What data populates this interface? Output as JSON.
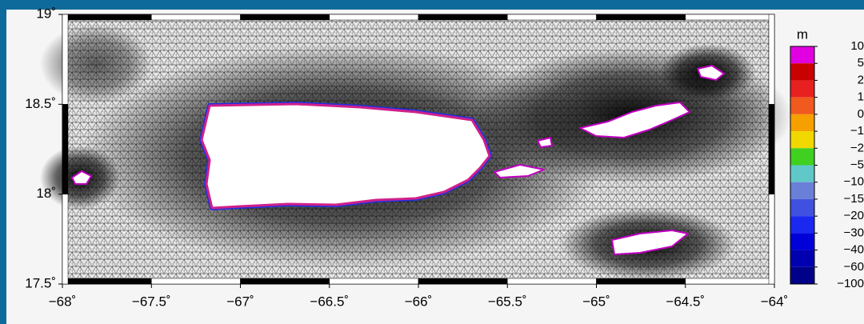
{
  "map": {
    "xlim": [
      -68,
      -64
    ],
    "ylim": [
      17.5,
      19
    ],
    "xticks": [
      {
        "value": -68,
        "label": "−68˚"
      },
      {
        "value": -67.5,
        "label": "−67.5˚"
      },
      {
        "value": -67,
        "label": "−67˚"
      },
      {
        "value": -66.5,
        "label": "−66.5˚"
      },
      {
        "value": -66,
        "label": "−66˚"
      },
      {
        "value": -65.5,
        "label": "−65.5˚"
      },
      {
        "value": -65,
        "label": "−65˚"
      },
      {
        "value": -64.5,
        "label": "−64.5˚"
      },
      {
        "value": -64,
        "label": "−64˚"
      }
    ],
    "yticks": [
      {
        "value": 17.5,
        "label": "17.5˚"
      },
      {
        "value": 18,
        "label": "18˚"
      },
      {
        "value": 18.5,
        "label": "18.5˚"
      },
      {
        "value": 19,
        "label": "19˚"
      }
    ],
    "colorbar": {
      "title": "m",
      "levels": [
        10,
        5,
        2,
        1,
        0,
        {
          "value": -1,
          "label": "−1"
        },
        {
          "value": -2,
          "label": "−2"
        },
        {
          "value": -5,
          "label": "−5"
        },
        {
          "value": -10,
          "label": "−10"
        },
        {
          "value": -15,
          "label": "−15"
        },
        {
          "value": -20,
          "label": "−20"
        },
        {
          "value": -30,
          "label": "−30"
        },
        {
          "value": -40,
          "label": "−40"
        },
        {
          "value": -60,
          "label": "−60"
        },
        {
          "value": -100,
          "label": "−100"
        }
      ],
      "colors": [
        "#e000e0",
        "#c80000",
        "#e82020",
        "#f05a1e",
        "#f5a000",
        "#f0d800",
        "#40d020",
        "#60c8c8",
        "#6a80d8",
        "#4050e0",
        "#1a28f0",
        "#0000d8",
        "#0000b0",
        "#000088"
      ]
    }
  }
}
